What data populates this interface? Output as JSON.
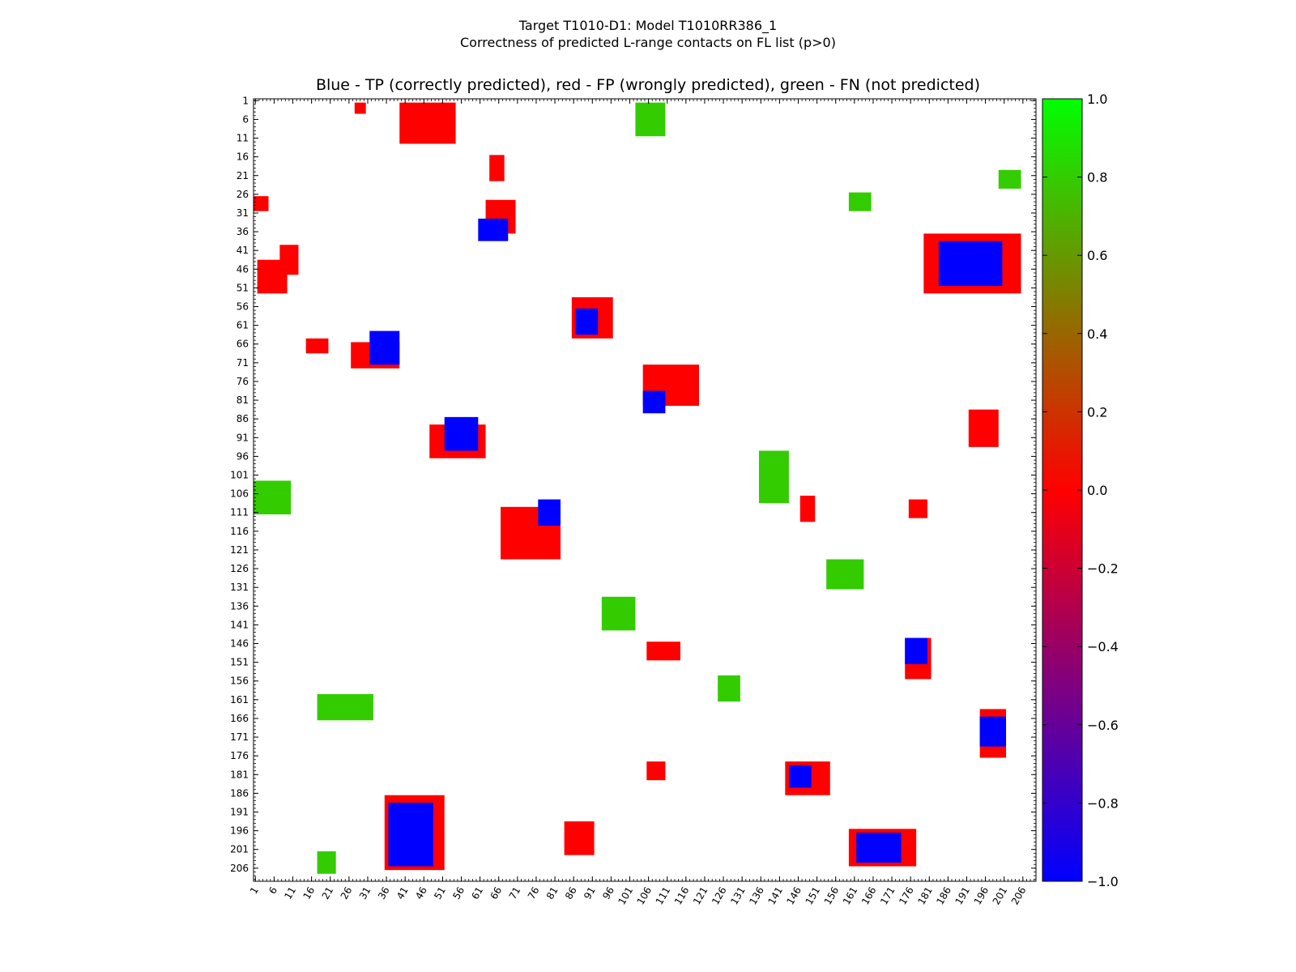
{
  "suptitle": {
    "line1": "Target T1010-D1: Model T1010RR386_1",
    "line2": "Correctness of predicted L-range contacts on FL list (p>0)"
  },
  "chart_data": {
    "type": "heatmap",
    "title": "Blue - TP (correctly predicted), red - FP (wrongly predicted), green - FN (not predicted)",
    "xlabel": "",
    "ylabel": "",
    "n_residues": 209,
    "xlim": [
      1,
      209
    ],
    "ylim": [
      1,
      209
    ],
    "y_inverted": true,
    "tick_labels": [
      "1",
      "6",
      "11",
      "16",
      "21",
      "26",
      "31",
      "36",
      "41",
      "46",
      "51",
      "56",
      "61",
      "66",
      "71",
      "76",
      "81",
      "86",
      "91",
      "96",
      "101",
      "106",
      "111",
      "116",
      "121",
      "126",
      "131",
      "136",
      "141",
      "146",
      "151",
      "156",
      "161",
      "166",
      "171",
      "176",
      "181",
      "186",
      "191",
      "196",
      "201",
      "206"
    ],
    "colorbar": {
      "min": -1.0,
      "max": 1.0,
      "ticks": [
        "−1.0",
        "−0.8",
        "−0.6",
        "−0.4",
        "−0.2",
        "0.0",
        "0.2",
        "0.4",
        "0.6",
        "0.8",
        "1.0"
      ],
      "colors": {
        "tp": "#0000ff",
        "fp": "#ff0000",
        "fn": "#33cc00"
      }
    },
    "legend": {
      "tp": "Blue - TP (correctly predicted)",
      "fp": "red - FP (wrongly predicted)",
      "fn": "green - FN (not predicted)"
    },
    "regions": [
      {
        "class": "fp",
        "x": [
          28,
          30
        ],
        "y": [
          2,
          4
        ]
      },
      {
        "class": "fp",
        "x": [
          40,
          54
        ],
        "y": [
          2,
          12
        ]
      },
      {
        "class": "fp",
        "x": [
          1,
          4
        ],
        "y": [
          27,
          30
        ]
      },
      {
        "class": "fp",
        "x": [
          2,
          9
        ],
        "y": [
          44,
          52
        ]
      },
      {
        "class": "fp",
        "x": [
          8,
          12
        ],
        "y": [
          40,
          47
        ]
      },
      {
        "class": "fp",
        "x": [
          64,
          67
        ],
        "y": [
          16,
          22
        ]
      },
      {
        "class": "fp",
        "x": [
          63,
          70
        ],
        "y": [
          28,
          36
        ]
      },
      {
        "class": "tp",
        "x": [
          61,
          68
        ],
        "y": [
          33,
          38
        ]
      },
      {
        "class": "fp",
        "x": [
          180,
          205
        ],
        "y": [
          37,
          52
        ]
      },
      {
        "class": "tp",
        "x": [
          184,
          200
        ],
        "y": [
          39,
          50
        ]
      },
      {
        "class": "fp",
        "x": [
          86,
          96
        ],
        "y": [
          54,
          64
        ]
      },
      {
        "class": "tp",
        "x": [
          87,
          92
        ],
        "y": [
          57,
          63
        ]
      },
      {
        "class": "fp",
        "x": [
          27,
          39
        ],
        "y": [
          66,
          72
        ]
      },
      {
        "class": "tp",
        "x": [
          32,
          39
        ],
        "y": [
          63,
          71
        ]
      },
      {
        "class": "fp",
        "x": [
          15,
          20
        ],
        "y": [
          65,
          68
        ]
      },
      {
        "class": "fp",
        "x": [
          105,
          119
        ],
        "y": [
          72,
          82
        ]
      },
      {
        "class": "tp",
        "x": [
          105,
          110
        ],
        "y": [
          79,
          84
        ]
      },
      {
        "class": "fp",
        "x": [
          48,
          62
        ],
        "y": [
          88,
          96
        ]
      },
      {
        "class": "tp",
        "x": [
          52,
          60
        ],
        "y": [
          86,
          94
        ]
      },
      {
        "class": "fp",
        "x": [
          67,
          82
        ],
        "y": [
          110,
          123
        ]
      },
      {
        "class": "tp",
        "x": [
          77,
          82
        ],
        "y": [
          108,
          114
        ]
      },
      {
        "class": "fp",
        "x": [
          147,
          150
        ],
        "y": [
          107,
          113
        ]
      },
      {
        "class": "fp",
        "x": [
          176,
          180
        ],
        "y": [
          108,
          112
        ]
      },
      {
        "class": "fp",
        "x": [
          106,
          114
        ],
        "y": [
          146,
          150
        ]
      },
      {
        "class": "fp",
        "x": [
          175,
          181
        ],
        "y": [
          145,
          155
        ]
      },
      {
        "class": "tp",
        "x": [
          175,
          180
        ],
        "y": [
          145,
          151
        ]
      },
      {
        "class": "fp",
        "x": [
          106,
          110
        ],
        "y": [
          178,
          182
        ]
      },
      {
        "class": "fp",
        "x": [
          143,
          154
        ],
        "y": [
          178,
          186
        ]
      },
      {
        "class": "tp",
        "x": [
          144,
          149
        ],
        "y": [
          179,
          184
        ]
      },
      {
        "class": "fp",
        "x": [
          195,
          201
        ],
        "y": [
          164,
          176
        ]
      },
      {
        "class": "tp",
        "x": [
          195,
          201
        ],
        "y": [
          166,
          173
        ]
      },
      {
        "class": "fp",
        "x": [
          36,
          51
        ],
        "y": [
          187,
          206
        ]
      },
      {
        "class": "tp",
        "x": [
          37,
          48
        ],
        "y": [
          189,
          205
        ]
      },
      {
        "class": "fp",
        "x": [
          84,
          91
        ],
        "y": [
          194,
          202
        ]
      },
      {
        "class": "fp",
        "x": [
          160,
          177
        ],
        "y": [
          196,
          205
        ]
      },
      {
        "class": "tp",
        "x": [
          162,
          173
        ],
        "y": [
          197,
          204
        ]
      },
      {
        "class": "fp",
        "x": [
          192,
          199
        ],
        "y": [
          84,
          93
        ]
      },
      {
        "class": "fn",
        "x": [
          103,
          110
        ],
        "y": [
          2,
          10
        ]
      },
      {
        "class": "fn",
        "x": [
          200,
          205
        ],
        "y": [
          20,
          24
        ]
      },
      {
        "class": "fn",
        "x": [
          160,
          165
        ],
        "y": [
          26,
          30
        ]
      },
      {
        "class": "fn",
        "x": [
          136,
          143
        ],
        "y": [
          95,
          108
        ]
      },
      {
        "class": "fn",
        "x": [
          1,
          10
        ],
        "y": [
          103,
          111
        ]
      },
      {
        "class": "fn",
        "x": [
          154,
          163
        ],
        "y": [
          124,
          131
        ]
      },
      {
        "class": "fn",
        "x": [
          94,
          102
        ],
        "y": [
          134,
          142
        ]
      },
      {
        "class": "fn",
        "x": [
          125,
          130
        ],
        "y": [
          155,
          161
        ]
      },
      {
        "class": "fn",
        "x": [
          18,
          32
        ],
        "y": [
          160,
          166
        ]
      },
      {
        "class": "fn",
        "x": [
          18,
          22
        ],
        "y": [
          202,
          207
        ]
      }
    ]
  }
}
